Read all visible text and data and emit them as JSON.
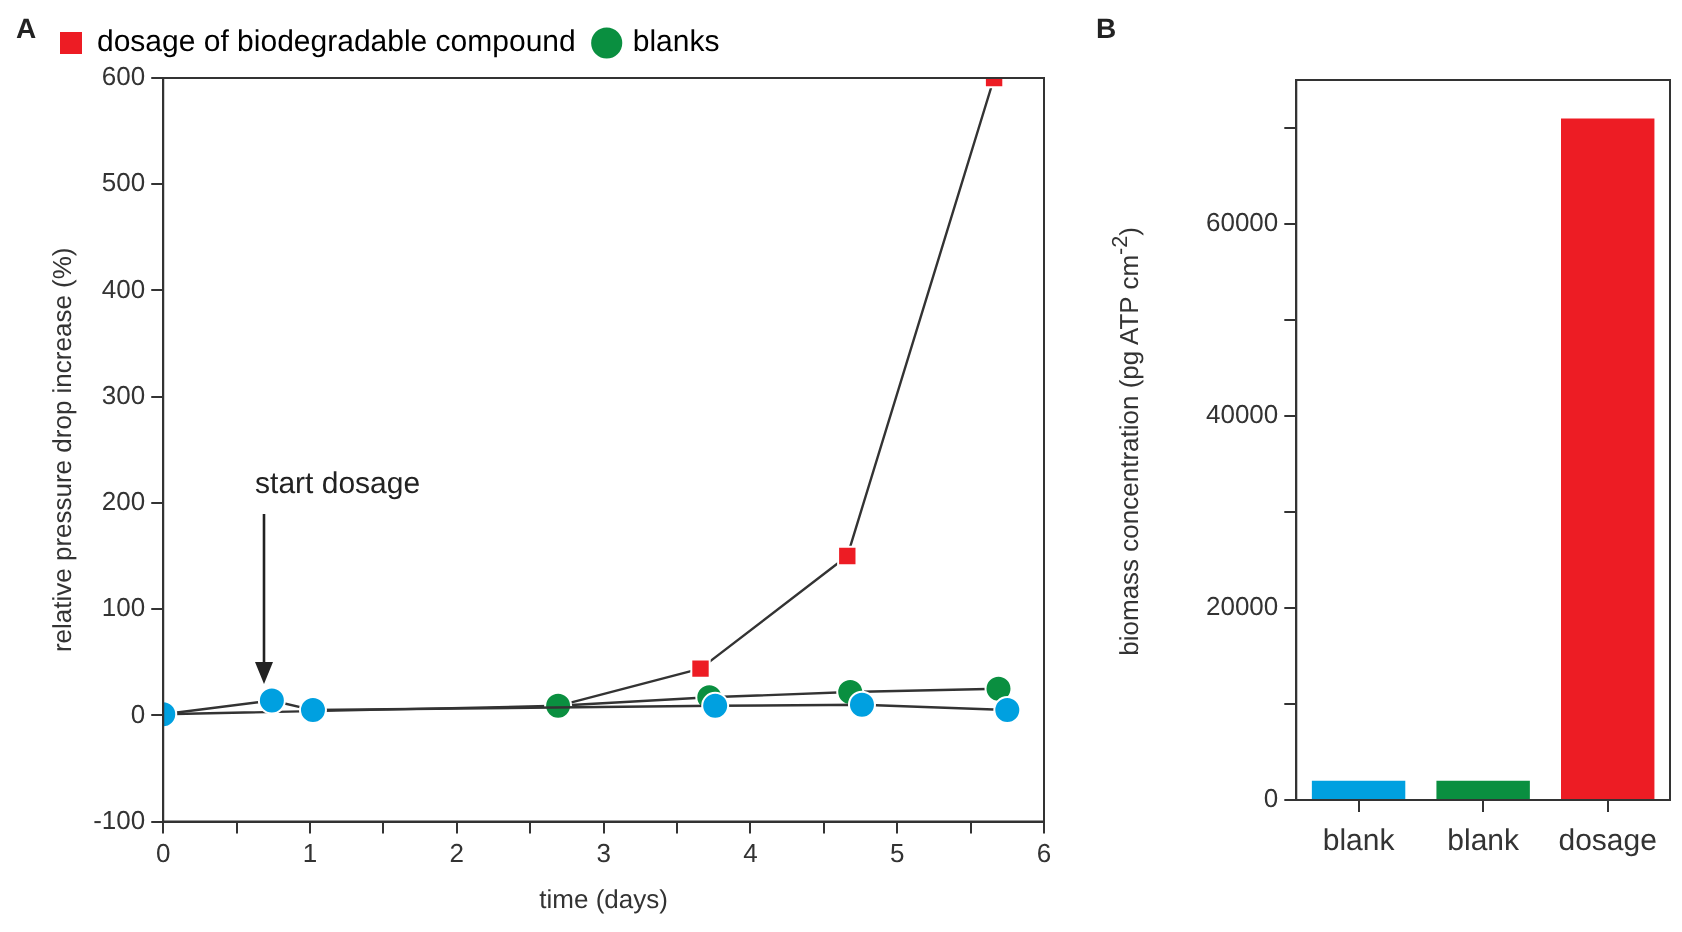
{
  "chart_data": [
    {
      "type": "line",
      "title": "A",
      "xlabel": "time (days)",
      "ylabel": "relative pressure drop increase (%)",
      "xlim": [
        0,
        6
      ],
      "xticks": [
        0,
        {
          "value": 0.5,
          "label": null
        },
        1,
        {
          "value": 1.5,
          "label": null
        },
        2,
        {
          "value": 2.5,
          "label": null
        },
        3,
        {
          "value": 3.5,
          "label": null
        },
        4,
        {
          "value": 4.5,
          "label": null
        },
        5,
        {
          "value": 5.5,
          "label": null
        },
        6
      ],
      "ylim": [
        -100,
        600
      ],
      "yticks": [
        -100,
        0,
        100,
        200,
        300,
        400,
        500,
        600
      ],
      "grid": false,
      "legend": "top left",
      "line_style": "solid",
      "series": [
        {
          "name": "dosage of biodegradable compound",
          "color": "#ed1c24",
          "marker": "square",
          "x": [
            0,
            2.69,
            3.66,
            4.66,
            5.66
          ],
          "values": [
            1,
            9,
            44,
            150,
            600
          ]
        },
        {
          "name": "blanks",
          "color": "#0a8f40",
          "marker": "circle",
          "x": [
            2.69,
            3.72,
            4.68,
            5.69
          ],
          "values": [
            9,
            17,
            22,
            25
          ]
        },
        {
          "color": "#00a0e0",
          "marker": "circle",
          "x": [
            0,
            0.74,
            1.02,
            3.76,
            4.76,
            5.75
          ],
          "values": [
            1,
            14,
            5,
            9,
            10,
            5
          ]
        }
      ],
      "annotations": [
        {
          "text": "start dosage",
          "x": 0.68,
          "y": 30
        }
      ]
    },
    {
      "type": "bar",
      "title": "B",
      "ylabel": "biomass concentration (pg ATP cm$^{-2}$)",
      "categories": [
        "blank",
        "blank",
        "dosage"
      ],
      "values": [
        2000,
        2000,
        71000
      ],
      "colors": [
        "#00a0e0",
        "#0a8f40",
        "#ed1c24"
      ],
      "ylim": [
        0,
        75000
      ],
      "yticks": [
        0,
        {
          "value": 10000,
          "label": null
        },
        20000,
        {
          "value": 30000,
          "label": null
        },
        40000,
        {
          "value": 50000,
          "label": null
        },
        60000,
        {
          "value": 70000,
          "label": null
        }
      ],
      "grid": false,
      "legend": false
    }
  ]
}
